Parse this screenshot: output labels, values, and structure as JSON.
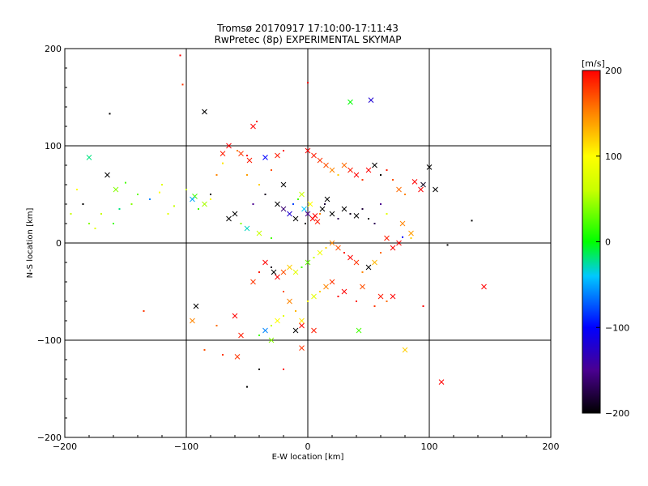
{
  "chart_data": {
    "type": "scatter",
    "title_line1": "Tromsø 20170917 17:10:00-17:11:43",
    "title_line2": "RwPretec (8p) EXPERIMENTAL SKYMAP",
    "xlabel": "E-W location [km]",
    "ylabel": "N-S location [km]",
    "xlim": [
      -200,
      200
    ],
    "ylim": [
      -200,
      200
    ],
    "xticks": [
      "−200",
      "−100",
      "0",
      "100",
      "200"
    ],
    "yticks": [
      "200",
      "100",
      "0",
      "−100",
      "−200"
    ],
    "grid_lines": [
      -100,
      0,
      100
    ],
    "colorbar": {
      "label": "[m/s]",
      "range": [
        -200,
        200
      ],
      "ticks": [
        "200",
        "100",
        "0",
        "−100",
        "−200"
      ],
      "colors": [
        "#000000",
        "#5000a0",
        "#0000ff",
        "#00c8ff",
        "#00ff00",
        "#ffff00",
        "#ff8000",
        "#ff0000"
      ]
    },
    "points": [
      [
        -105,
        193,
        200,
        "dot"
      ],
      [
        -103,
        163,
        180,
        "dot"
      ],
      [
        -85,
        135,
        -200,
        "x"
      ],
      [
        -163,
        133,
        -200,
        "dot"
      ],
      [
        -180,
        88,
        -20,
        "x"
      ],
      [
        -165,
        70,
        -200,
        "x"
      ],
      [
        -158,
        55,
        40,
        "x"
      ],
      [
        -150,
        62,
        20,
        "dot"
      ],
      [
        -185,
        40,
        -200,
        "dot"
      ],
      [
        -195,
        30,
        60,
        "dot"
      ],
      [
        -140,
        50,
        30,
        "dot"
      ],
      [
        -130,
        45,
        -60,
        "dot"
      ],
      [
        -120,
        60,
        80,
        "dot"
      ],
      [
        -100,
        55,
        60,
        "dot"
      ],
      [
        -93,
        48,
        20,
        "x"
      ],
      [
        -80,
        50,
        -200,
        "dot"
      ],
      [
        -135,
        -70,
        180,
        "dot"
      ],
      [
        -92,
        -65,
        -200,
        "x"
      ],
      [
        -95,
        -80,
        150,
        "x"
      ],
      [
        -75,
        -85,
        160,
        "dot"
      ],
      [
        -85,
        -110,
        170,
        "dot"
      ],
      [
        -70,
        -115,
        180,
        "dot"
      ],
      [
        -55,
        -95,
        190,
        "x"
      ],
      [
        -60,
        -75,
        200,
        "x"
      ],
      [
        -65,
        100,
        200,
        "x"
      ],
      [
        -55,
        92,
        180,
        "x"
      ],
      [
        -48,
        85,
        190,
        "x"
      ],
      [
        -45,
        120,
        200,
        "x"
      ],
      [
        -42,
        125,
        190,
        "dot"
      ],
      [
        -58,
        95,
        150,
        "dot"
      ],
      [
        -70,
        82,
        110,
        "dot"
      ],
      [
        -50,
        70,
        140,
        "dot"
      ],
      [
        -40,
        60,
        120,
        "dot"
      ],
      [
        -30,
        75,
        170,
        "dot"
      ],
      [
        -25,
        90,
        190,
        "x"
      ],
      [
        -20,
        60,
        -200,
        "x"
      ],
      [
        -35,
        50,
        -190,
        "dot"
      ],
      [
        -45,
        40,
        -150,
        "dot"
      ],
      [
        -60,
        30,
        -200,
        "x"
      ],
      [
        -65,
        25,
        -200,
        "x"
      ],
      [
        -55,
        20,
        40,
        "dot"
      ],
      [
        -50,
        15,
        -30,
        "x"
      ],
      [
        -40,
        10,
        60,
        "x"
      ],
      [
        -30,
        5,
        20,
        "dot"
      ],
      [
        -25,
        40,
        -200,
        "x"
      ],
      [
        -20,
        35,
        -160,
        "x"
      ],
      [
        -15,
        30,
        -120,
        "x"
      ],
      [
        -12,
        40,
        -80,
        "dot"
      ],
      [
        -10,
        25,
        -200,
        "x"
      ],
      [
        -8,
        45,
        20,
        "dot"
      ],
      [
        -5,
        50,
        60,
        "x"
      ],
      [
        -3,
        35,
        -40,
        "x"
      ],
      [
        -2,
        20,
        -200,
        "dot"
      ],
      [
        0,
        30,
        -150,
        "x"
      ],
      [
        2,
        40,
        100,
        "x"
      ],
      [
        4,
        25,
        200,
        "x"
      ],
      [
        6,
        28,
        200,
        "x"
      ],
      [
        8,
        22,
        190,
        "x"
      ],
      [
        10,
        30,
        150,
        "dot"
      ],
      [
        12,
        35,
        -200,
        "x"
      ],
      [
        14,
        40,
        -180,
        "dot"
      ],
      [
        16,
        45,
        -200,
        "x"
      ],
      [
        20,
        30,
        -200,
        "x"
      ],
      [
        25,
        25,
        -170,
        "dot"
      ],
      [
        30,
        35,
        -200,
        "x"
      ],
      [
        35,
        30,
        -190,
        "dot"
      ],
      [
        40,
        28,
        -200,
        "x"
      ],
      [
        45,
        35,
        -180,
        "dot"
      ],
      [
        50,
        25,
        -200,
        "dot"
      ],
      [
        55,
        20,
        -170,
        "dot"
      ],
      [
        60,
        40,
        -150,
        "dot"
      ],
      [
        65,
        30,
        80,
        "dot"
      ],
      [
        0,
        95,
        200,
        "x"
      ],
      [
        5,
        90,
        190,
        "x"
      ],
      [
        10,
        85,
        180,
        "x"
      ],
      [
        15,
        80,
        170,
        "x"
      ],
      [
        20,
        75,
        150,
        "x"
      ],
      [
        25,
        70,
        120,
        "dot"
      ],
      [
        30,
        80,
        160,
        "x"
      ],
      [
        35,
        75,
        190,
        "x"
      ],
      [
        40,
        70,
        200,
        "x"
      ],
      [
        45,
        65,
        180,
        "dot"
      ],
      [
        50,
        75,
        200,
        "x"
      ],
      [
        55,
        80,
        -200,
        "x"
      ],
      [
        60,
        70,
        -200,
        "dot"
      ],
      [
        65,
        75,
        190,
        "dot"
      ],
      [
        70,
        65,
        170,
        "dot"
      ],
      [
        75,
        55,
        160,
        "x"
      ],
      [
        80,
        50,
        150,
        "dot"
      ],
      [
        88,
        63,
        200,
        "x"
      ],
      [
        93,
        55,
        200,
        "x"
      ],
      [
        100,
        78,
        -200,
        "x"
      ],
      [
        105,
        55,
        -200,
        "x"
      ],
      [
        95,
        60,
        -190,
        "x"
      ],
      [
        78,
        20,
        150,
        "x"
      ],
      [
        85,
        10,
        140,
        "x"
      ],
      [
        78,
        6,
        -100,
        "dot"
      ],
      [
        85,
        5,
        120,
        "dot"
      ],
      [
        75,
        0,
        200,
        "x"
      ],
      [
        70,
        -5,
        200,
        "x"
      ],
      [
        65,
        5,
        190,
        "x"
      ],
      [
        60,
        -10,
        160,
        "dot"
      ],
      [
        55,
        -20,
        130,
        "x"
      ],
      [
        50,
        -25,
        -200,
        "x"
      ],
      [
        45,
        -30,
        150,
        "dot"
      ],
      [
        40,
        -20,
        180,
        "x"
      ],
      [
        35,
        -15,
        200,
        "x"
      ],
      [
        30,
        -10,
        190,
        "dot"
      ],
      [
        25,
        -5,
        170,
        "x"
      ],
      [
        20,
        0,
        150,
        "x"
      ],
      [
        15,
        -5,
        120,
        "dot"
      ],
      [
        10,
        -10,
        90,
        "x"
      ],
      [
        5,
        -15,
        60,
        "dot"
      ],
      [
        0,
        -20,
        30,
        "x"
      ],
      [
        -5,
        -25,
        20,
        "dot"
      ],
      [
        -10,
        -30,
        80,
        "x"
      ],
      [
        -15,
        -25,
        120,
        "x"
      ],
      [
        -20,
        -30,
        170,
        "x"
      ],
      [
        -25,
        -35,
        200,
        "x"
      ],
      [
        -28,
        -30,
        -200,
        "x"
      ],
      [
        -30,
        -25,
        -190,
        "dot"
      ],
      [
        -35,
        -20,
        200,
        "x"
      ],
      [
        -40,
        -30,
        190,
        "dot"
      ],
      [
        -45,
        -40,
        180,
        "x"
      ],
      [
        -20,
        -50,
        170,
        "dot"
      ],
      [
        -15,
        -60,
        150,
        "x"
      ],
      [
        -10,
        -70,
        130,
        "dot"
      ],
      [
        -5,
        -80,
        110,
        "x"
      ],
      [
        -20,
        -75,
        80,
        "dot"
      ],
      [
        -25,
        -80,
        100,
        "x"
      ],
      [
        -30,
        -85,
        60,
        "dot"
      ],
      [
        -35,
        -90,
        -60,
        "x"
      ],
      [
        -40,
        -95,
        20,
        "dot"
      ],
      [
        -30,
        -100,
        40,
        "x"
      ],
      [
        -10,
        -90,
        -200,
        "x"
      ],
      [
        -5,
        -85,
        200,
        "x"
      ],
      [
        5,
        -90,
        190,
        "x"
      ],
      [
        -5,
        -108,
        180,
        "x"
      ],
      [
        0,
        -60,
        100,
        "dot"
      ],
      [
        5,
        -55,
        80,
        "x"
      ],
      [
        10,
        -50,
        120,
        "dot"
      ],
      [
        15,
        -45,
        150,
        "x"
      ],
      [
        20,
        -40,
        180,
        "x"
      ],
      [
        25,
        -55,
        200,
        "dot"
      ],
      [
        30,
        -50,
        200,
        "x"
      ],
      [
        40,
        -60,
        190,
        "dot"
      ],
      [
        42,
        -90,
        20,
        "x"
      ],
      [
        45,
        -45,
        170,
        "x"
      ],
      [
        55,
        -65,
        180,
        "dot"
      ],
      [
        60,
        -55,
        190,
        "x"
      ],
      [
        65,
        -60,
        160,
        "dot"
      ],
      [
        70,
        -55,
        200,
        "x"
      ],
      [
        80,
        -110,
        120,
        "x"
      ],
      [
        95,
        -65,
        200,
        "dot"
      ],
      [
        110,
        -143,
        200,
        "x"
      ],
      [
        145,
        -45,
        200,
        "x"
      ],
      [
        135,
        23,
        -200,
        "dot"
      ],
      [
        115,
        -2,
        -200,
        "dot"
      ],
      [
        35,
        145,
        0,
        "x"
      ],
      [
        52,
        147,
        -120,
        "x"
      ],
      [
        0,
        165,
        200,
        "dot"
      ],
      [
        -20,
        95,
        200,
        "dot"
      ],
      [
        -50,
        90,
        200,
        "dot"
      ],
      [
        -35,
        88,
        -100,
        "x"
      ],
      [
        -40,
        -130,
        -200,
        "dot"
      ],
      [
        -20,
        -130,
        200,
        "dot"
      ],
      [
        -50,
        -148,
        -200,
        "dot"
      ],
      [
        -58,
        -117,
        180,
        "x"
      ],
      [
        -70,
        92,
        190,
        "x"
      ],
      [
        -75,
        70,
        150,
        "dot"
      ],
      [
        -80,
        45,
        100,
        "dot"
      ],
      [
        -85,
        40,
        50,
        "x"
      ],
      [
        -90,
        35,
        20,
        "dot"
      ],
      [
        -95,
        45,
        -50,
        "x"
      ],
      [
        -110,
        38,
        60,
        "dot"
      ],
      [
        -115,
        30,
        80,
        "dot"
      ],
      [
        -122,
        52,
        100,
        "dot"
      ],
      [
        -145,
        40,
        40,
        "dot"
      ],
      [
        -155,
        35,
        -20,
        "dot"
      ],
      [
        -170,
        30,
        60,
        "dot"
      ],
      [
        -180,
        20,
        40,
        "dot"
      ],
      [
        -175,
        15,
        80,
        "dot"
      ],
      [
        -160,
        20,
        20,
        "dot"
      ],
      [
        -190,
        55,
        100,
        "dot"
      ]
    ]
  }
}
